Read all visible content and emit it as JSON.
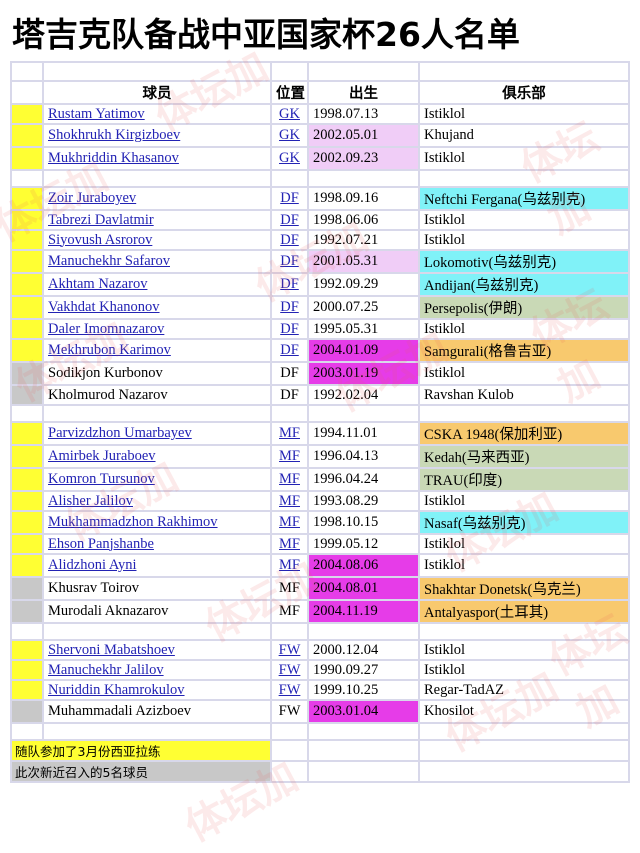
{
  "title": "塔吉克队备战中亚国家杯26人名单",
  "headers": {
    "player": "球员",
    "position": "位置",
    "birth": "出生",
    "club": "俱乐部"
  },
  "colors": {
    "yellow": "#ffff33",
    "gray": "#c8c8c8",
    "light_pink": "#f0cdf7",
    "magenta": "#e63ce8",
    "cyan": "#80f2f8",
    "orange": "#f8c96e",
    "green": "#c9d9b6",
    "link": "#2323b4"
  },
  "rows": [
    {
      "type": "player",
      "marker": "yellow",
      "name": "Rustam Yatimov",
      "link": true,
      "pos": "GK",
      "birth": "1998.07.13",
      "birth_bg": "",
      "club": "Istiklol",
      "club_bg": ""
    },
    {
      "type": "player",
      "marker": "yellow",
      "name": "Shokhrukh Kirgizboev",
      "link": true,
      "pos": "GK",
      "birth": "2002.05.01",
      "birth_bg": "light_pink",
      "club": "Khujand",
      "club_bg": ""
    },
    {
      "type": "player",
      "marker": "yellow",
      "name": "Mukhriddin Khasanov",
      "link": true,
      "pos": "GK",
      "birth": "2002.09.23",
      "birth_bg": "light_pink",
      "club": "Istiklol",
      "club_bg": ""
    },
    {
      "type": "blank"
    },
    {
      "type": "player",
      "marker": "yellow",
      "name": "Zoir Juraboyev",
      "link": true,
      "pos": "DF",
      "birth": "1998.09.16",
      "birth_bg": "",
      "club": "Neftchi Fergana(乌兹别克)",
      "club_bg": "cyan"
    },
    {
      "type": "player",
      "marker": "yellow",
      "name": "Tabrezi Davlatmir",
      "link": true,
      "pos": "DF",
      "birth": "1998.06.06",
      "birth_bg": "",
      "club": "Istiklol",
      "club_bg": ""
    },
    {
      "type": "player",
      "marker": "yellow",
      "name": "Siyovush Asrorov",
      "link": true,
      "pos": "DF",
      "birth": "1992.07.21",
      "birth_bg": "",
      "club": "Istiklol",
      "club_bg": ""
    },
    {
      "type": "player",
      "marker": "yellow",
      "name": "Manuchekhr Safarov",
      "link": true,
      "pos": "DF",
      "birth": "2001.05.31",
      "birth_bg": "light_pink",
      "club": "Lokomotiv(乌兹别克)",
      "club_bg": "cyan"
    },
    {
      "type": "player",
      "marker": "yellow",
      "name": "Akhtam Nazarov",
      "link": true,
      "pos": "DF",
      "birth": "1992.09.29",
      "birth_bg": "",
      "club": "Andijan(乌兹别克)",
      "club_bg": "cyan"
    },
    {
      "type": "player",
      "marker": "yellow",
      "name": "Vakhdat Khanonov",
      "link": true,
      "pos": "DF",
      "birth": "2000.07.25",
      "birth_bg": "",
      "club": "Persepolis(伊朗)",
      "club_bg": "green"
    },
    {
      "type": "player",
      "marker": "yellow",
      "name": "Daler Imomnazarov",
      "link": true,
      "pos": "DF",
      "birth": "1995.05.31",
      "birth_bg": "",
      "club": "Istiklol",
      "club_bg": ""
    },
    {
      "type": "player",
      "marker": "yellow",
      "name": "Mekhrubon Karimov",
      "link": true,
      "pos": "DF",
      "birth": "2004.01.09",
      "birth_bg": "magenta",
      "club": "Samgurali(格鲁吉亚)",
      "club_bg": "orange"
    },
    {
      "type": "player",
      "marker": "gray",
      "name": "Sodikjon Kurbonov",
      "link": false,
      "pos": "DF",
      "birth": "2003.01.19",
      "birth_bg": "magenta",
      "club": "Istiklol",
      "club_bg": ""
    },
    {
      "type": "player",
      "marker": "gray",
      "name": "Kholmurod Nazarov",
      "link": false,
      "pos": "DF",
      "birth": "1992.02.04",
      "birth_bg": "",
      "club": "Ravshan Kulob",
      "club_bg": ""
    },
    {
      "type": "blank"
    },
    {
      "type": "player",
      "marker": "yellow",
      "name": "Parvizdzhon Umarbayev",
      "link": true,
      "pos": "MF",
      "birth": "1994.11.01",
      "birth_bg": "",
      "club": "CSKA 1948(保加利亚)",
      "club_bg": "orange"
    },
    {
      "type": "player",
      "marker": "yellow",
      "name": "Amirbek Juraboev",
      "link": true,
      "pos": "MF",
      "birth": "1996.04.13",
      "birth_bg": "",
      "club": "Kedah(马来西亚)",
      "club_bg": "green"
    },
    {
      "type": "player",
      "marker": "yellow",
      "name": "Komron Tursunov",
      "link": true,
      "pos": "MF",
      "birth": "1996.04.24",
      "birth_bg": "",
      "club": "TRAU(印度)",
      "club_bg": "green"
    },
    {
      "type": "player",
      "marker": "yellow",
      "name": "Alisher Jalilov",
      "link": true,
      "pos": "MF",
      "birth": "1993.08.29",
      "birth_bg": "",
      "club": "Istiklol",
      "club_bg": ""
    },
    {
      "type": "player",
      "marker": "yellow",
      "name": "Mukhammadzhon Rakhimov",
      "link": true,
      "pos": "MF",
      "birth": "1998.10.15",
      "birth_bg": "",
      "club": "Nasaf(乌兹别克)",
      "club_bg": "cyan"
    },
    {
      "type": "player",
      "marker": "yellow",
      "name": "Ehson Panjshanbe",
      "link": true,
      "pos": "MF",
      "birth": "1999.05.12",
      "birth_bg": "",
      "club": "Istiklol",
      "club_bg": ""
    },
    {
      "type": "player",
      "marker": "yellow",
      "name": "Alidzhoni Ayni",
      "link": true,
      "pos": "MF",
      "birth": "2004.08.06",
      "birth_bg": "magenta",
      "club": "Istiklol",
      "club_bg": ""
    },
    {
      "type": "player",
      "marker": "gray",
      "name": "Khusrav Toirov",
      "link": false,
      "pos": "MF",
      "birth": "2004.08.01",
      "birth_bg": "magenta",
      "club": "Shakhtar Donetsk(乌克兰)",
      "club_bg": "orange"
    },
    {
      "type": "player",
      "marker": "gray",
      "name": "Murodali Aknazarov",
      "link": false,
      "pos": "MF",
      "birth": "2004.11.19",
      "birth_bg": "magenta",
      "club": "Antalyaspor(土耳其)",
      "club_bg": "orange"
    },
    {
      "type": "blank"
    },
    {
      "type": "player",
      "marker": "yellow",
      "name": "Shervoni Mabatshoev",
      "link": true,
      "pos": "FW",
      "birth": "2000.12.04",
      "birth_bg": "",
      "club": "Istiklol",
      "club_bg": ""
    },
    {
      "type": "player",
      "marker": "yellow",
      "name": "Manuchekhr Jalilov",
      "link": true,
      "pos": "FW",
      "birth": "1990.09.27",
      "birth_bg": "",
      "club": "Istiklol",
      "club_bg": ""
    },
    {
      "type": "player",
      "marker": "yellow",
      "name": "Nuriddin Khamrokulov",
      "link": true,
      "pos": "FW",
      "birth": "1999.10.25",
      "birth_bg": "",
      "club": "Regar-TadAZ",
      "club_bg": ""
    },
    {
      "type": "player",
      "marker": "gray",
      "name": "Muhammadali Azizboev",
      "link": false,
      "pos": "FW",
      "birth": "2003.01.04",
      "birth_bg": "magenta",
      "club": "Khosilot",
      "club_bg": ""
    },
    {
      "type": "blank"
    }
  ],
  "legend": [
    {
      "text": "随队参加了3月份西亚拉练",
      "color": "yellow"
    },
    {
      "text": "此次新近召入的5名球员",
      "color": "gray"
    }
  ],
  "watermark": "体坛加"
}
